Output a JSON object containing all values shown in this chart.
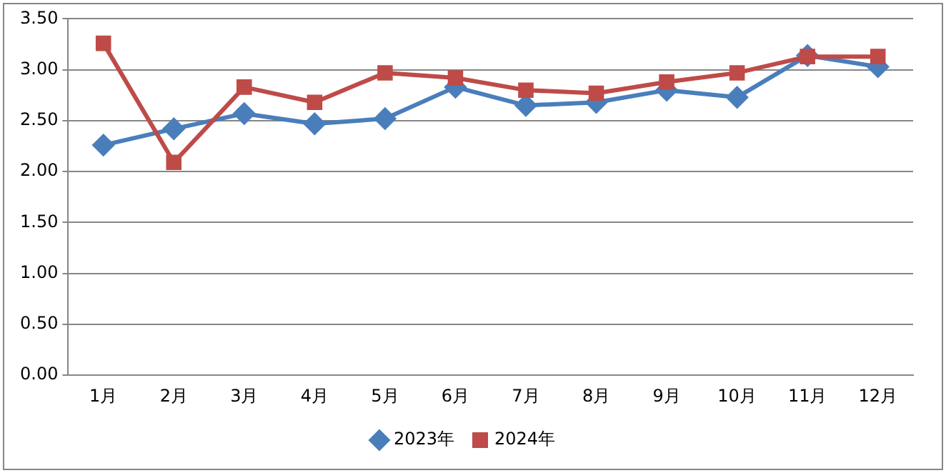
{
  "chart_data": {
    "type": "line",
    "categories": [
      "1月",
      "2月",
      "3月",
      "4月",
      "5月",
      "6月",
      "7月",
      "8月",
      "9月",
      "10月",
      "11月",
      "12月"
    ],
    "series": [
      {
        "name": "2023年",
        "color": "#4a7ebb",
        "marker": "diamond",
        "values": [
          2.26,
          2.42,
          2.57,
          2.47,
          2.52,
          2.83,
          2.65,
          2.68,
          2.8,
          2.73,
          3.14,
          3.03
        ]
      },
      {
        "name": "2024年",
        "color": "#be4b48",
        "marker": "square",
        "values": [
          3.26,
          2.09,
          2.83,
          2.68,
          2.97,
          2.92,
          2.8,
          2.77,
          2.88,
          2.97,
          3.13,
          3.13
        ]
      }
    ],
    "ylim": [
      0,
      3.5
    ],
    "yticks": [
      {
        "value": 0,
        "label": "0.00"
      },
      {
        "value": 0.5,
        "label": "0.50"
      },
      {
        "value": 1,
        "label": "1.00"
      },
      {
        "value": 1.5,
        "label": "1.50"
      },
      {
        "value": 2,
        "label": "2.00"
      },
      {
        "value": 2.5,
        "label": "2.50"
      },
      {
        "value": 3,
        "label": "3.00"
      },
      {
        "value": 3.5,
        "label": "3.50"
      }
    ],
    "grid": "y",
    "legend": "bottom",
    "line_style": "solid"
  }
}
